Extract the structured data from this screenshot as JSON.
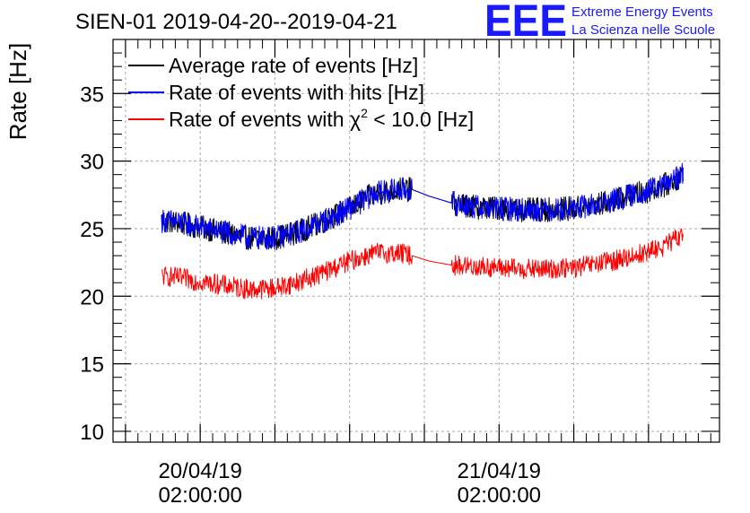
{
  "chart_data": {
    "type": "line",
    "title": "SIEN-01 2019-04-20--2019-04-21",
    "xlabel": "",
    "ylabel": "Rate [Hz]",
    "ylim": [
      9.2,
      39
    ],
    "y_ticks": [
      10,
      15,
      20,
      25,
      30,
      35
    ],
    "y_tick_labels": [
      "10",
      "15",
      "20",
      "25",
      "30",
      "35"
    ],
    "x_unit": "hours since 2019-04-20 00:00:00",
    "xlim": [
      -5.0,
      43.7
    ],
    "x_ticks": [
      {
        "x": 2,
        "line1": "20/04/19",
        "line2": "02:00:00"
      },
      {
        "x": 26,
        "line1": "21/04/19",
        "line2": "02:00:00"
      }
    ],
    "legend": {
      "placement": "top-left",
      "entries": [
        {
          "label": "Average rate of events [Hz]",
          "color": "#000000"
        },
        {
          "label": "Rate of events with hits [Hz]",
          "color": "#0000ff"
        },
        {
          "label_prefix": "Rate of events with ",
          "label_symbol": "χ",
          "label_sup": "2",
          "label_suffix": " < 10.0 [Hz]",
          "color": "#ff0000"
        }
      ]
    },
    "series": [
      {
        "name": "Average rate of events [Hz]",
        "color": "#000000",
        "x": [
          -1.1,
          0,
          2,
          4,
          6,
          8,
          10,
          12,
          14,
          16,
          18,
          19,
          20.4,
          22.2,
          24,
          26,
          28,
          30,
          32,
          34,
          36,
          38,
          39.5,
          40.8
        ],
        "y": [
          25.6,
          25.5,
          25.1,
          24.7,
          24.3,
          24.3,
          24.8,
          25.6,
          26.5,
          27.6,
          27.9,
          27.9,
          27.4,
          26.9,
          26.6,
          26.5,
          26.4,
          26.4,
          26.5,
          26.8,
          27.3,
          27.8,
          28.3,
          29.0
        ],
        "noise": 0.9
      },
      {
        "name": "Rate of events with hits [Hz]",
        "color": "#0000ff",
        "x": [
          -1.1,
          0,
          2,
          4,
          6,
          8,
          10,
          12,
          14,
          16,
          18,
          19,
          20.4,
          22.2,
          24,
          26,
          28,
          30,
          32,
          34,
          36,
          38,
          39.5,
          40.8
        ],
        "y": [
          25.6,
          25.5,
          25.1,
          24.7,
          24.3,
          24.3,
          24.8,
          25.6,
          26.5,
          27.6,
          27.9,
          27.9,
          27.4,
          26.9,
          26.6,
          26.5,
          26.4,
          26.4,
          26.5,
          26.8,
          27.3,
          27.8,
          28.3,
          29.0
        ],
        "noise": 0.9
      },
      {
        "name": "Rate of events with chi2 < 10.0 [Hz]",
        "color": "#ff0000",
        "x": [
          -1.1,
          0,
          2,
          4,
          6,
          8,
          10,
          12,
          14,
          16,
          18,
          19,
          20.4,
          22.2,
          24,
          26,
          28,
          30,
          32,
          34,
          36,
          38,
          39.5,
          40.8
        ],
        "y": [
          21.5,
          21.4,
          21.1,
          20.8,
          20.5,
          20.6,
          21.1,
          21.8,
          22.6,
          23.2,
          23.2,
          23.0,
          22.6,
          22.3,
          22.2,
          22.1,
          22.0,
          22.0,
          22.1,
          22.4,
          22.8,
          23.3,
          23.8,
          24.6
        ],
        "noise": 0.75
      }
    ],
    "data_gap_hours": [
      19.0,
      22.2
    ],
    "grid": true
  },
  "logo": {
    "mark": "EEE",
    "line1": "Extreme Energy Events",
    "line2": "La Scienza nelle Scuole",
    "color": "#1a1aff"
  }
}
